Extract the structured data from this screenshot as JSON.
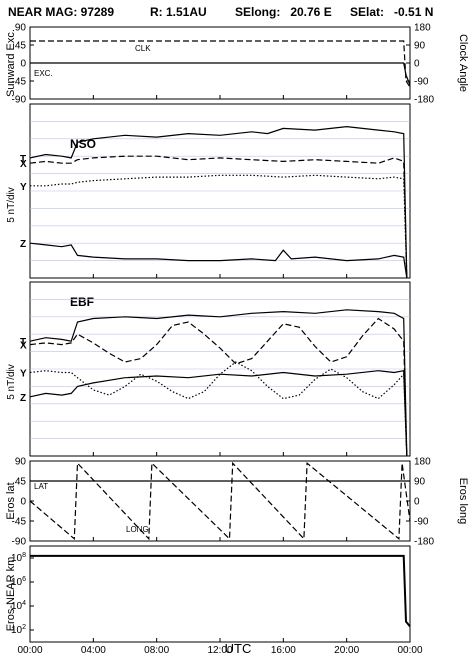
{
  "header": {
    "title": "NEAR MAG: 97289",
    "range": "R: 1.51AU",
    "selong": "SElong:   20.76 E",
    "selat": "SElat:   -0.51 N"
  },
  "x_ticks": [
    "00:00",
    "04:00",
    "08:00",
    "12:00",
    "16:00",
    "20:00",
    "00:00"
  ],
  "x_label": "UTC",
  "colors": {
    "ink": "#000000",
    "grid": "#b8c4e8"
  },
  "chart_data": [
    {
      "type": "line",
      "ylabel_left": "Sunward Exc.",
      "ylabel_right": "Clock Angle",
      "left_ticks": [
        "90",
        "45",
        "0",
        "-45",
        "-90"
      ],
      "right_ticks": [
        "180",
        "90",
        "0",
        "-90",
        "-180"
      ],
      "ylim_left": [
        -90,
        90
      ],
      "ylim_right": [
        -180,
        180
      ],
      "xlim_hours": [
        0,
        24
      ],
      "annotations": [
        "CLK",
        "EXC."
      ],
      "series": [
        {
          "name": "CLK",
          "style": "dashed",
          "x": [
            0,
            23.6,
            23.75,
            24.0
          ],
          "y": [
            110,
            110,
            -90,
            -120
          ],
          "axis": "right"
        },
        {
          "name": "EXC.",
          "style": "solid",
          "x": [
            0,
            23.6,
            23.75,
            24.0
          ],
          "y": [
            0,
            0,
            -30,
            -55
          ],
          "axis": "left"
        }
      ]
    },
    {
      "type": "line",
      "panel_label": "NSO",
      "ylabel_left": "5 nT/div",
      "xlim_hours": [
        0,
        24
      ],
      "series": [
        {
          "name": "T",
          "style": "solid",
          "x": [
            0,
            1,
            2,
            2.6,
            3,
            4,
            6,
            8,
            10,
            12,
            14,
            15,
            16,
            18,
            20,
            22,
            23,
            23.6,
            23.8
          ],
          "y": [
            6.9,
            7.1,
            7.0,
            6.9,
            7.8,
            8.0,
            8.2,
            8.1,
            8.3,
            8.2,
            8.4,
            8.3,
            8.6,
            8.5,
            8.7,
            8.5,
            8.4,
            8.3,
            -5.0
          ]
        },
        {
          "name": "X",
          "style": "dashed",
          "x": [
            0,
            1,
            2,
            2.6,
            3,
            4,
            6,
            8,
            10,
            12,
            14,
            16,
            18,
            20,
            22,
            23,
            23.6,
            23.8
          ],
          "y": [
            6.6,
            6.7,
            6.6,
            6.6,
            6.8,
            6.9,
            7.0,
            7.0,
            6.8,
            6.9,
            6.8,
            6.7,
            6.8,
            6.7,
            6.6,
            6.9,
            6.7,
            -5.0
          ]
        },
        {
          "name": "Y",
          "style": "dotted",
          "x": [
            0,
            1,
            2,
            2.6,
            3,
            4,
            6,
            8,
            10,
            12,
            14,
            16,
            18,
            20,
            22,
            23,
            23.6,
            23.8
          ],
          "y": [
            5.3,
            5.3,
            5.4,
            5.4,
            5.5,
            5.6,
            5.7,
            5.8,
            5.8,
            5.9,
            5.9,
            5.8,
            5.9,
            5.8,
            5.7,
            5.8,
            5.7,
            -5.0
          ]
        },
        {
          "name": "Z",
          "style": "solid",
          "x": [
            0,
            1,
            2,
            2.6,
            3,
            4,
            6,
            8,
            10,
            12,
            14,
            15.5,
            16,
            16.5,
            18,
            20,
            22,
            23,
            23.6,
            23.8
          ],
          "y": [
            2.0,
            1.9,
            1.8,
            1.9,
            1.3,
            1.2,
            1.1,
            1.1,
            1.0,
            1.0,
            1.1,
            1.0,
            1.6,
            1.1,
            1.2,
            1.0,
            1.1,
            1.3,
            1.2,
            -5.0
          ]
        }
      ]
    },
    {
      "type": "line",
      "panel_label": "EBF",
      "ylabel_left": "5 nT/div",
      "xlim_hours": [
        0,
        24
      ],
      "series": [
        {
          "name": "T",
          "style": "solid",
          "x": [
            0,
            1,
            2,
            2.6,
            3,
            4,
            6,
            8,
            10,
            12,
            14,
            16,
            18,
            20,
            22,
            23,
            23.6,
            23.8
          ],
          "y": [
            6.6,
            6.8,
            6.7,
            6.6,
            7.7,
            7.9,
            8.0,
            7.9,
            8.1,
            8.0,
            8.2,
            8.3,
            8.2,
            8.4,
            8.3,
            8.2,
            7.9,
            -5.0
          ]
        },
        {
          "name": "X",
          "style": "dashed",
          "x": [
            0,
            1,
            2,
            2.6,
            3,
            4,
            5,
            6,
            7,
            8,
            9,
            10,
            11,
            12,
            13,
            14,
            15,
            16,
            17,
            18,
            19,
            20,
            21,
            22,
            23,
            23.6,
            23.8
          ],
          "y": [
            6.4,
            6.5,
            6.4,
            6.5,
            7.0,
            6.5,
            5.9,
            5.4,
            5.6,
            6.4,
            7.5,
            7.7,
            7.0,
            6.2,
            5.3,
            5.6,
            6.6,
            7.6,
            7.4,
            6.3,
            5.4,
            5.7,
            6.9,
            7.9,
            7.3,
            6.6,
            -5.0
          ]
        },
        {
          "name": "Y",
          "style": "dotted",
          "x": [
            0,
            1,
            2,
            2.6,
            3,
            4,
            5,
            6,
            7,
            8,
            9,
            10,
            11,
            12,
            13,
            14,
            15,
            16,
            17,
            18,
            19,
            20,
            21,
            22,
            23,
            23.6,
            23.8
          ],
          "y": [
            4.8,
            4.9,
            4.8,
            4.8,
            4.5,
            3.8,
            3.5,
            4.0,
            4.7,
            4.3,
            3.7,
            3.3,
            3.7,
            4.7,
            5.4,
            4.9,
            4.0,
            3.3,
            3.5,
            4.4,
            5.0,
            4.5,
            3.7,
            3.3,
            4.1,
            4.7,
            -5.0
          ]
        },
        {
          "name": "Z",
          "style": "solid",
          "x": [
            0,
            1,
            2,
            2.6,
            3,
            4,
            6,
            8,
            10,
            12,
            14,
            16,
            18,
            20,
            22,
            23,
            23.6,
            23.8
          ],
          "y": [
            3.4,
            3.6,
            3.5,
            3.6,
            4.0,
            4.2,
            4.5,
            4.6,
            4.5,
            4.7,
            4.6,
            4.8,
            4.6,
            4.7,
            4.9,
            4.8,
            4.9,
            -5.0
          ]
        }
      ]
    },
    {
      "type": "line",
      "ylabel_left": "Eros lat",
      "ylabel_right": "Eros long",
      "left_ticks": [
        "90",
        "45",
        "0",
        "-45",
        "-90"
      ],
      "right_ticks": [
        "180",
        "90",
        "0",
        "-90",
        "-180"
      ],
      "ylim_left": [
        -90,
        90
      ],
      "ylim_right": [
        -180,
        180
      ],
      "xlim_hours": [
        0,
        24
      ],
      "annotations": [
        "LAT",
        "LONG"
      ],
      "series": [
        {
          "name": "LAT",
          "style": "solid",
          "x": [
            0,
            24
          ],
          "y": [
            45,
            45
          ],
          "axis": "left"
        },
        {
          "name": "LONG",
          "style": "dashed",
          "x": [
            0,
            2.8,
            3.0,
            7.5,
            7.7,
            12.6,
            12.8,
            17.3,
            17.5,
            23.3,
            23.5,
            24.0
          ],
          "y": [
            0,
            -170,
            170,
            -170,
            170,
            -170,
            170,
            -170,
            170,
            -170,
            170,
            -90
          ],
          "axis": "right"
        }
      ]
    },
    {
      "type": "line",
      "ylabel_left": "Eros-NEAR km",
      "left_ticks": [
        "10^8",
        "10^6",
        "10^4",
        "10^2"
      ],
      "yscale": "log",
      "ylim_left": [
        10,
        1000000000
      ],
      "xlim_hours": [
        0,
        24
      ],
      "series": [
        {
          "name": "Eros-NEAR distance",
          "style": "solid",
          "x": [
            0,
            23.6,
            23.75,
            24.0
          ],
          "y": [
            150000000,
            150000000,
            500,
            200
          ]
        }
      ]
    }
  ]
}
